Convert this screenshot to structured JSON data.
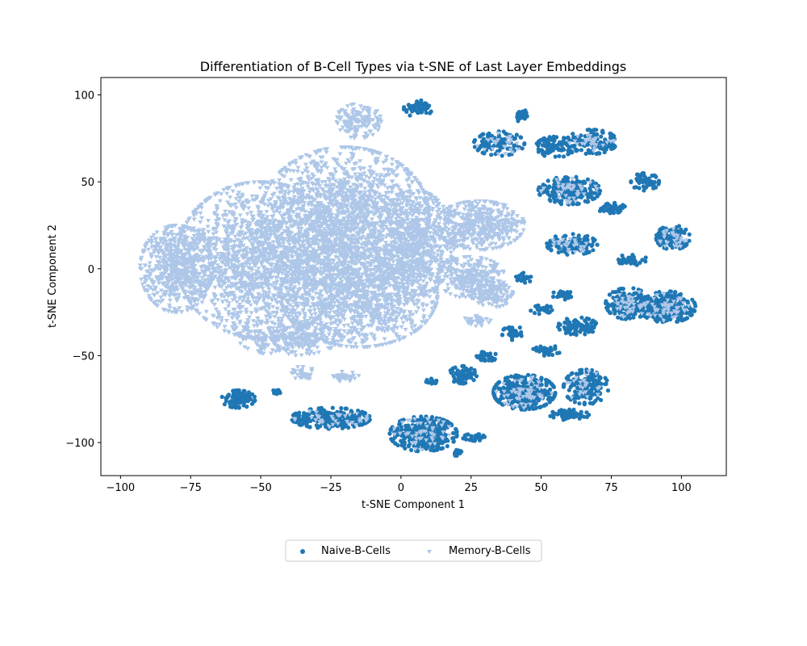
{
  "chart_data": {
    "type": "scatter",
    "title": "Differentiation of B-Cell Types via t-SNE of Last Layer Embeddings",
    "xlabel": "t-SNE Component 1",
    "ylabel": "t-SNE Component 2",
    "xlim": [
      -107,
      116
    ],
    "ylim": [
      -119,
      110
    ],
    "xticks": [
      -100,
      -75,
      -50,
      -25,
      0,
      25,
      50,
      75,
      100
    ],
    "yticks": [
      -100,
      -50,
      0,
      50,
      100
    ],
    "xtick_labels": [
      "−100",
      "−75",
      "−50",
      "−25",
      "0",
      "25",
      "50",
      "75",
      "100"
    ],
    "ytick_labels": [
      "−100",
      "−50",
      "0",
      "50",
      "100"
    ],
    "grid": false,
    "legend_position": "bottom-center",
    "series": [
      {
        "name": "Naive-B-Cells",
        "marker": "circle",
        "color": "#1f77b4",
        "clusters": [
          {
            "cx": 6,
            "cy": 92,
            "rx": 5,
            "ry": 5,
            "n": 60
          },
          {
            "cx": 35,
            "cy": 72,
            "rx": 9,
            "ry": 7,
            "n": 110
          },
          {
            "cx": 55,
            "cy": 70,
            "rx": 7,
            "ry": 6,
            "n": 90
          },
          {
            "cx": 68,
            "cy": 73,
            "rx": 9,
            "ry": 7,
            "n": 120
          },
          {
            "cx": 43,
            "cy": 88,
            "rx": 2,
            "ry": 4,
            "n": 25
          },
          {
            "cx": 60,
            "cy": 45,
            "rx": 11,
            "ry": 8,
            "n": 220
          },
          {
            "cx": 75,
            "cy": 35,
            "rx": 5,
            "ry": 3,
            "n": 45
          },
          {
            "cx": 87,
            "cy": 50,
            "rx": 5,
            "ry": 5,
            "n": 60
          },
          {
            "cx": 61,
            "cy": 14,
            "rx": 9,
            "ry": 6,
            "n": 110
          },
          {
            "cx": 97,
            "cy": 18,
            "rx": 6,
            "ry": 7,
            "n": 120
          },
          {
            "cx": 82,
            "cy": 5,
            "rx": 6,
            "ry": 3,
            "n": 40
          },
          {
            "cx": 44,
            "cy": -5,
            "rx": 3,
            "ry": 3,
            "n": 20
          },
          {
            "cx": 81,
            "cy": -20,
            "rx": 8,
            "ry": 9,
            "n": 220
          },
          {
            "cx": 95,
            "cy": -22,
            "rx": 10,
            "ry": 9,
            "n": 250
          },
          {
            "cx": 58,
            "cy": -15,
            "rx": 4,
            "ry": 3,
            "n": 30
          },
          {
            "cx": 63,
            "cy": -33,
            "rx": 7,
            "ry": 5,
            "n": 90
          },
          {
            "cx": 50,
            "cy": -23,
            "rx": 4,
            "ry": 3,
            "n": 30
          },
          {
            "cx": 40,
            "cy": -37,
            "rx": 4,
            "ry": 4,
            "n": 40
          },
          {
            "cx": 52,
            "cy": -47,
            "rx": 5,
            "ry": 3,
            "n": 40
          },
          {
            "cx": 31,
            "cy": -50,
            "rx": 4,
            "ry": 3,
            "n": 35
          },
          {
            "cx": 44,
            "cy": -71,
            "rx": 11,
            "ry": 10,
            "n": 300
          },
          {
            "cx": 66,
            "cy": -68,
            "rx": 8,
            "ry": 10,
            "n": 170
          },
          {
            "cx": 60,
            "cy": -84,
            "rx": 7,
            "ry": 3,
            "n": 60
          },
          {
            "cx": 22,
            "cy": -61,
            "rx": 5,
            "ry": 5,
            "n": 70
          },
          {
            "cx": 8,
            "cy": -95,
            "rx": 12,
            "ry": 10,
            "n": 350
          },
          {
            "cx": 26,
            "cy": -97,
            "rx": 4,
            "ry": 2,
            "n": 25
          },
          {
            "cx": -25,
            "cy": -86,
            "rx": 14,
            "ry": 6,
            "n": 260
          },
          {
            "cx": -58,
            "cy": -75,
            "rx": 6,
            "ry": 5,
            "n": 100
          },
          {
            "cx": -44,
            "cy": -71,
            "rx": 2,
            "ry": 1.5,
            "n": 12
          },
          {
            "cx": 20,
            "cy": -106,
            "rx": 2,
            "ry": 2,
            "n": 15
          },
          {
            "cx": 11,
            "cy": -65,
            "rx": 2,
            "ry": 2,
            "n": 15
          }
        ]
      },
      {
        "name": "Memory-B-Cells",
        "marker": "triangle-down",
        "color": "#aec7e8",
        "clusters": [
          {
            "cx": -50,
            "cy": 5,
            "rx": 30,
            "ry": 45,
            "n": 1800
          },
          {
            "cx": -20,
            "cy": 30,
            "rx": 30,
            "ry": 40,
            "n": 1700
          },
          {
            "cx": -15,
            "cy": -15,
            "rx": 28,
            "ry": 30,
            "n": 1300
          },
          {
            "cx": -80,
            "cy": 0,
            "rx": 13,
            "ry": 25,
            "n": 600
          },
          {
            "cx": 5,
            "cy": 15,
            "rx": 14,
            "ry": 30,
            "n": 700
          },
          {
            "cx": 28,
            "cy": 25,
            "rx": 16,
            "ry": 14,
            "n": 500
          },
          {
            "cx": 25,
            "cy": -5,
            "rx": 12,
            "ry": 12,
            "n": 300
          },
          {
            "cx": 33,
            "cy": -15,
            "rx": 7,
            "ry": 7,
            "n": 120
          },
          {
            "cx": -40,
            "cy": -40,
            "rx": 18,
            "ry": 10,
            "n": 300
          },
          {
            "cx": -15,
            "cy": 85,
            "rx": 8,
            "ry": 10,
            "n": 150
          },
          {
            "cx": -35,
            "cy": -60,
            "rx": 4,
            "ry": 4,
            "n": 40
          },
          {
            "cx": -20,
            "cy": -62,
            "rx": 5,
            "ry": 3,
            "n": 40
          },
          {
            "cx": 27,
            "cy": -30,
            "rx": 5,
            "ry": 3,
            "n": 40
          },
          {
            "cx": 35,
            "cy": 72,
            "rx": 8,
            "ry": 6,
            "n": 25
          },
          {
            "cx": 60,
            "cy": 45,
            "rx": 10,
            "ry": 7,
            "n": 45
          },
          {
            "cx": 95,
            "cy": -22,
            "rx": 9,
            "ry": 8,
            "n": 50
          },
          {
            "cx": 81,
            "cy": -20,
            "rx": 7,
            "ry": 8,
            "n": 40
          },
          {
            "cx": 44,
            "cy": -71,
            "rx": 10,
            "ry": 9,
            "n": 55
          },
          {
            "cx": 8,
            "cy": -95,
            "rx": 11,
            "ry": 9,
            "n": 50
          },
          {
            "cx": 68,
            "cy": 73,
            "rx": 8,
            "ry": 6,
            "n": 30
          },
          {
            "cx": 61,
            "cy": 14,
            "rx": 8,
            "ry": 5,
            "n": 25
          },
          {
            "cx": 97,
            "cy": 18,
            "rx": 5,
            "ry": 6,
            "n": 25
          },
          {
            "cx": -25,
            "cy": -86,
            "rx": 13,
            "ry": 5,
            "n": 35
          },
          {
            "cx": 66,
            "cy": -68,
            "rx": 7,
            "ry": 9,
            "n": 25
          }
        ]
      }
    ]
  }
}
